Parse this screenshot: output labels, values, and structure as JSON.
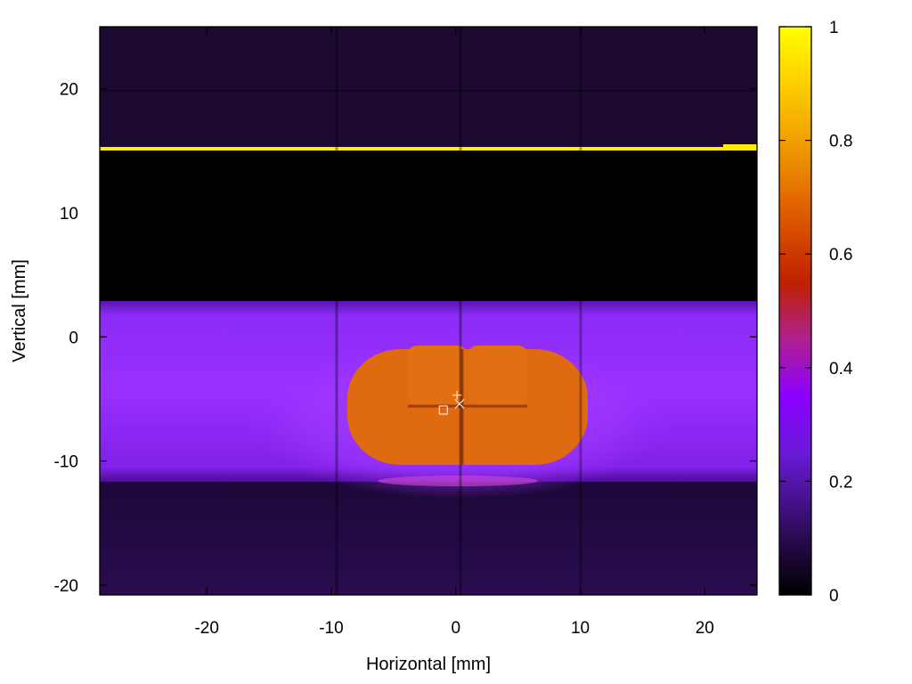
{
  "chart_data": {
    "type": "heatmap",
    "title": "",
    "xlabel": "Horizontal [mm]",
    "ylabel": "Vertical [mm]",
    "xlim": [
      -28.6,
      24.2
    ],
    "ylim": [
      -20.8,
      25
    ],
    "xticks": [
      -20,
      -10,
      0,
      10,
      20
    ],
    "yticks": [
      -20,
      -10,
      0,
      10,
      20
    ],
    "colorbar": {
      "range": [
        0,
        1
      ],
      "ticks": [
        0,
        0.2,
        0.4,
        0.6,
        0.8,
        1
      ],
      "tick_labels": [
        "0",
        "0.2",
        "0.4",
        "0.6",
        "0.8",
        "1"
      ],
      "colormap": [
        "#000000",
        "#2a0a50",
        "#6a1ad8",
        "#8a00ff",
        "#c02060",
        "#d03000",
        "#e07000",
        "#f0a000",
        "#ffd000",
        "#ffff00"
      ]
    },
    "regions": [
      {
        "name": "background-top",
        "x": [
          -28.6,
          24.2
        ],
        "y": [
          15,
          25
        ],
        "value": 0.05
      },
      {
        "name": "bright-line",
        "x": [
          -28.6,
          24.2
        ],
        "y": [
          15,
          15.3
        ],
        "value": 1.0
      },
      {
        "name": "dark-band",
        "x": [
          -28.6,
          24.2
        ],
        "y": [
          3,
          15
        ],
        "value": 0.0
      },
      {
        "name": "purple-band",
        "x": [
          -28.6,
          24.2
        ],
        "y": [
          -11.5,
          3
        ],
        "value": 0.28
      },
      {
        "name": "orange-blob",
        "x": [
          -9,
          9.5
        ],
        "y": [
          -10,
          -0.8
        ],
        "value": 0.68
      },
      {
        "name": "background-bottom",
        "x": [
          -28.6,
          24.2
        ],
        "y": [
          -20.8,
          -11.5
        ],
        "value": 0.05
      }
    ],
    "markers": [
      {
        "symbol": "+",
        "x": 0.1,
        "y": -4.7
      },
      {
        "symbol": "x",
        "x": 0.3,
        "y": -5.4
      },
      {
        "symbol": "square",
        "x": -1.0,
        "y": -5.9
      }
    ]
  }
}
